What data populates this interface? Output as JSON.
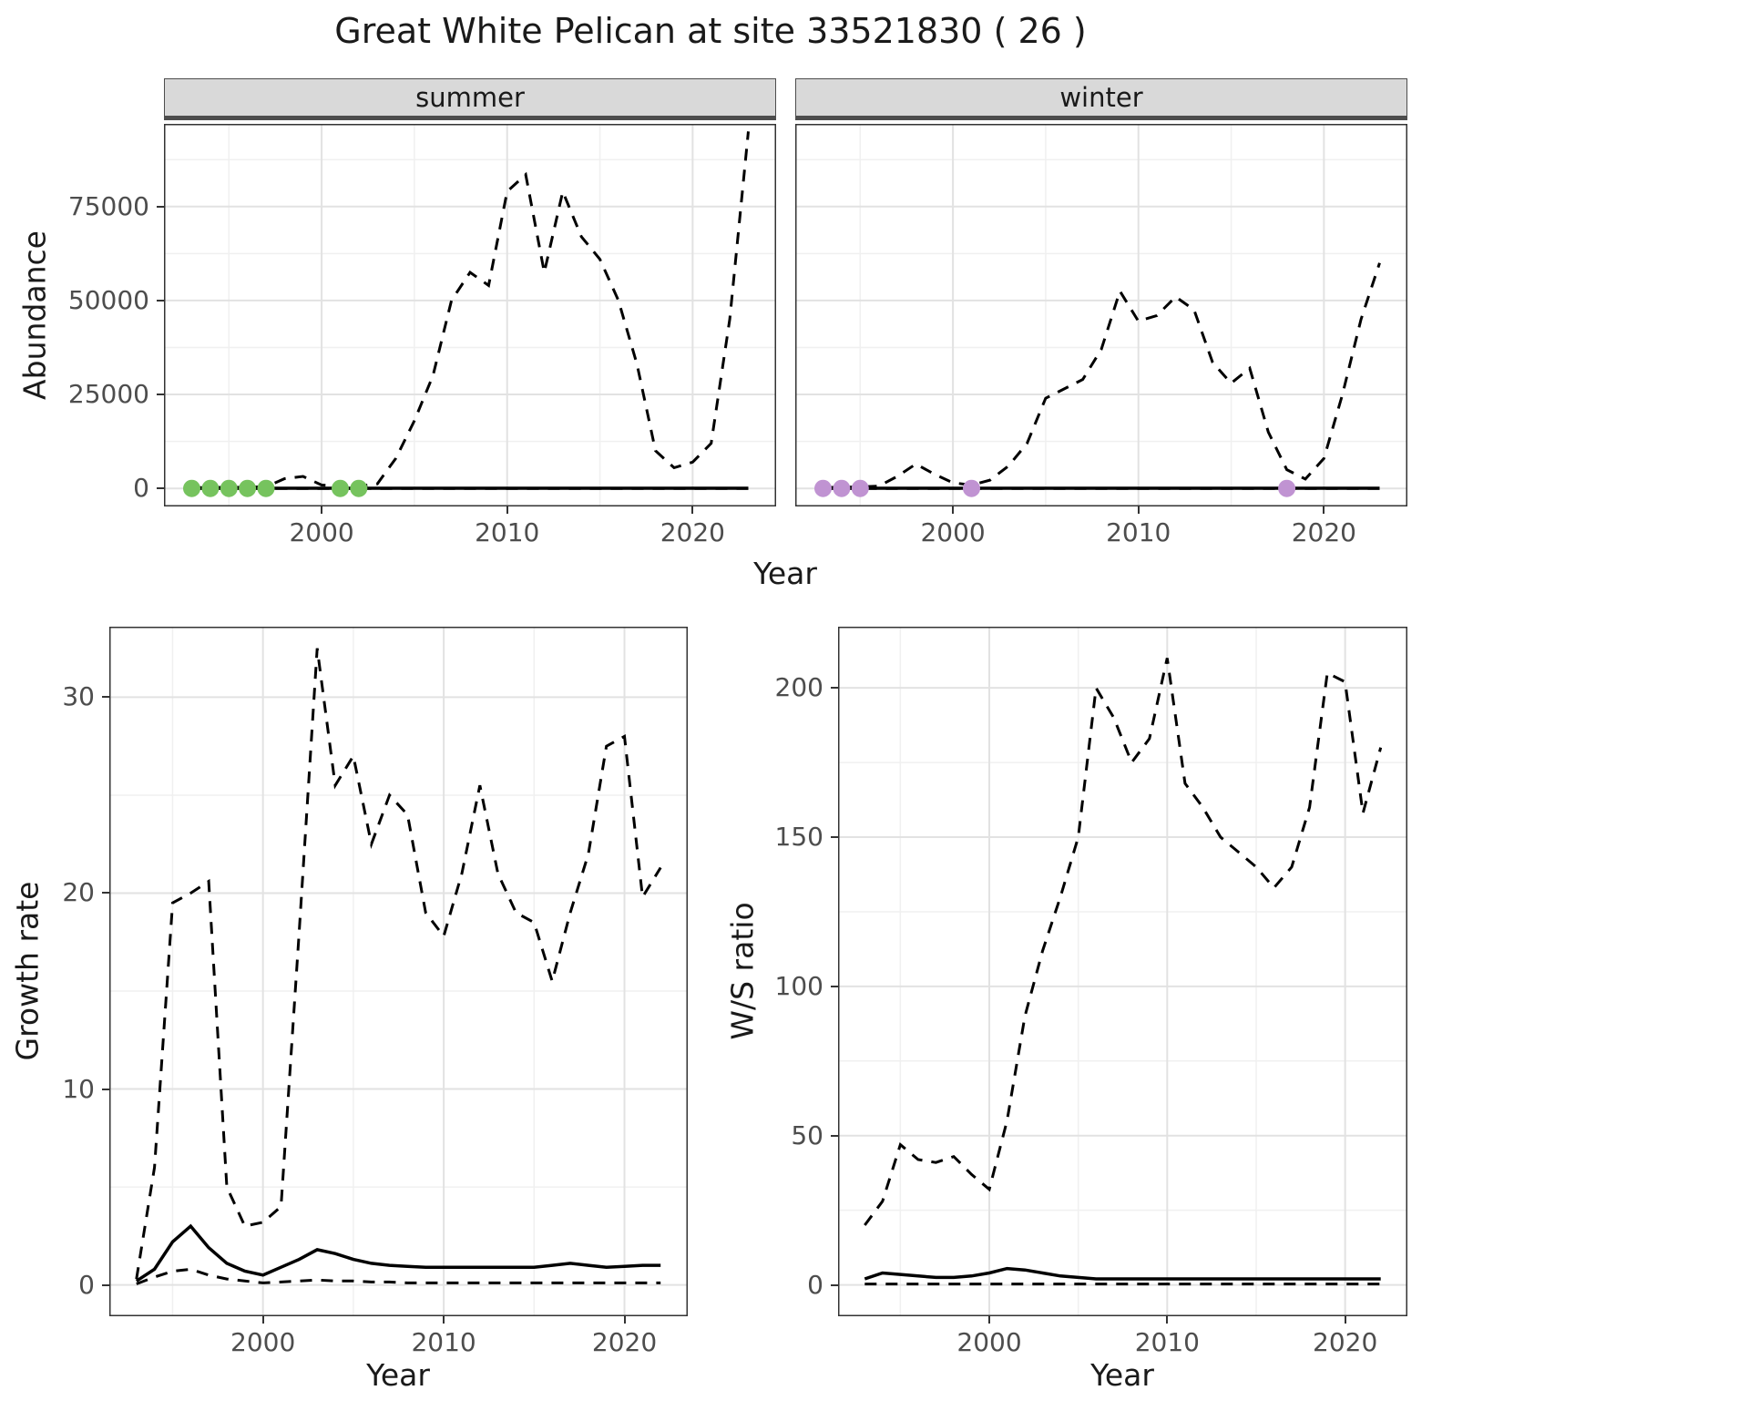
{
  "title": "Great White Pelican at site 33521830 ( 26 )",
  "top_plot": {
    "facets": [
      "summer",
      "winter"
    ],
    "xlabel": "Year",
    "ylabel": "Abundance"
  },
  "bottom_left": {
    "xlabel": "Year",
    "ylabel": "Growth rate"
  },
  "bottom_right": {
    "xlabel": "Year",
    "ylabel": "W/S ratio"
  },
  "colors": {
    "line": "#000000",
    "summer_points": "#76c35e",
    "winter_points": "#c093d2",
    "strip_background": "#d9d9d9",
    "panel_border": "#333333",
    "grid_major": "#e2e2e2",
    "grid_minor": "#f0f0f0",
    "tick_text": "#4d4d4d",
    "text": "#1a1a1a"
  },
  "chart_data": [
    {
      "id": "abundance-summer",
      "type": "line",
      "facet": "summer",
      "xlabel": "Year",
      "ylabel": "Abundance",
      "xlim": [
        1991.5,
        2024.5
      ],
      "ylim": [
        -4800,
        97000
      ],
      "xticks": [
        2000,
        2010,
        2020
      ],
      "xticks_minor": [
        1995,
        2005,
        2015
      ],
      "yticks": [
        0,
        25000,
        50000,
        75000
      ],
      "yticks_minor": [
        12500,
        37500,
        62500,
        87500
      ],
      "x": [
        1993,
        1994,
        1995,
        1996,
        1997,
        1998,
        1999,
        2000,
        2001,
        2002,
        2003,
        2004,
        2005,
        2006,
        2007,
        2008,
        2009,
        2010,
        2011,
        2012,
        2013,
        2014,
        2015,
        2016,
        2017,
        2018,
        2019,
        2020,
        2021,
        2022,
        2023
      ],
      "series": [
        {
          "name": "estimate",
          "style": "solid",
          "values": [
            50,
            50,
            50,
            50,
            50,
            50,
            50,
            50,
            50,
            50,
            50,
            50,
            50,
            50,
            50,
            50,
            50,
            50,
            50,
            50,
            50,
            50,
            50,
            50,
            50,
            50,
            50,
            50,
            50,
            50,
            50
          ]
        },
        {
          "name": "upper-ci",
          "style": "dashed",
          "values": [
            250,
            250,
            300,
            350,
            400,
            2600,
            3200,
            900,
            600,
            600,
            1200,
            8000,
            18000,
            30000,
            50000,
            57500,
            54000,
            79000,
            83500,
            57500,
            79000,
            67000,
            61000,
            50000,
            33000,
            10000,
            5500,
            7000,
            12000,
            45000,
            95000
          ]
        },
        {
          "name": "lower-ci",
          "style": "dashed",
          "values": [
            0,
            0,
            0,
            0,
            0,
            0,
            0,
            0,
            0,
            0,
            0,
            0,
            0,
            0,
            0,
            0,
            0,
            0,
            0,
            0,
            0,
            0,
            0,
            0,
            0,
            0,
            0,
            0,
            0,
            0,
            0
          ]
        }
      ],
      "points": [
        {
          "name": "zero-count-year-point",
          "color": "#76c35e",
          "x": [
            1993,
            1994,
            1995,
            1996,
            1997,
            2001,
            2002
          ],
          "y": [
            0,
            0,
            0,
            0,
            0,
            0,
            0
          ]
        }
      ]
    },
    {
      "id": "abundance-winter",
      "type": "line",
      "facet": "winter",
      "xlabel": "Year",
      "ylabel": "Abundance",
      "xlim": [
        1991.5,
        2024.5
      ],
      "ylim": [
        -4800,
        97000
      ],
      "xticks": [
        2000,
        2010,
        2020
      ],
      "xticks_minor": [
        1995,
        2005,
        2015
      ],
      "yticks": [
        0,
        25000,
        50000,
        75000
      ],
      "yticks_minor": [
        12500,
        37500,
        62500,
        87500
      ],
      "x": [
        1993,
        1994,
        1995,
        1996,
        1997,
        1998,
        1999,
        2000,
        2001,
        2002,
        2003,
        2004,
        2005,
        2006,
        2007,
        2008,
        2009,
        2010,
        2011,
        2012,
        2013,
        2014,
        2015,
        2016,
        2017,
        2018,
        2019,
        2020,
        2021,
        2022,
        2023
      ],
      "series": [
        {
          "name": "estimate",
          "style": "solid",
          "values": [
            50,
            50,
            50,
            50,
            50,
            50,
            50,
            50,
            50,
            50,
            50,
            50,
            50,
            50,
            50,
            50,
            50,
            50,
            50,
            50,
            50,
            50,
            50,
            50,
            50,
            50,
            50,
            50,
            50,
            50,
            50
          ]
        },
        {
          "name": "upper-ci",
          "style": "dashed",
          "values": [
            300,
            300,
            400,
            600,
            3200,
            6500,
            3800,
            1500,
            900,
            2200,
            6000,
            12000,
            24000,
            26500,
            29000,
            37000,
            52500,
            44500,
            46000,
            51000,
            47500,
            33500,
            28000,
            32000,
            15000,
            5000,
            2500,
            8000,
            25000,
            45000,
            60000
          ]
        },
        {
          "name": "lower-ci",
          "style": "dashed",
          "values": [
            0,
            0,
            0,
            0,
            0,
            0,
            0,
            0,
            0,
            0,
            0,
            0,
            0,
            0,
            0,
            0,
            0,
            0,
            0,
            0,
            0,
            0,
            0,
            0,
            0,
            0,
            0,
            0,
            0,
            0,
            0
          ]
        }
      ],
      "points": [
        {
          "name": "zero-count-year-point",
          "color": "#c093d2",
          "x": [
            1993,
            1994,
            1995,
            2001,
            2018
          ],
          "y": [
            0,
            0,
            0,
            0,
            0
          ]
        }
      ]
    },
    {
      "id": "growth-rate",
      "type": "line",
      "xlabel": "Year",
      "ylabel": "Growth rate",
      "xlim": [
        1991.5,
        2023.5
      ],
      "ylim": [
        -1.6,
        33.6
      ],
      "xticks": [
        2000,
        2010,
        2020
      ],
      "xticks_minor": [
        1995,
        2005,
        2015
      ],
      "yticks": [
        0,
        10,
        20,
        30
      ],
      "yticks_minor": [
        5,
        15,
        25
      ],
      "x": [
        1993,
        1994,
        1995,
        1996,
        1997,
        1998,
        1999,
        2000,
        2001,
        2002,
        2003,
        2004,
        2005,
        2006,
        2007,
        2008,
        2009,
        2010,
        2011,
        2012,
        2013,
        2014,
        2015,
        2016,
        2017,
        2018,
        2019,
        2020,
        2021,
        2022
      ],
      "series": [
        {
          "name": "estimate",
          "style": "solid",
          "values": [
            0.2,
            0.8,
            2.2,
            3.0,
            1.9,
            1.1,
            0.7,
            0.5,
            0.9,
            1.3,
            1.8,
            1.6,
            1.3,
            1.1,
            1.0,
            0.95,
            0.9,
            0.9,
            0.9,
            0.9,
            0.9,
            0.9,
            0.9,
            1.0,
            1.1,
            1.0,
            0.9,
            0.95,
            1.0,
            1.0
          ]
        },
        {
          "name": "upper-ci",
          "style": "dashed",
          "values": [
            0.3,
            6,
            19.5,
            20.0,
            20.6,
            5,
            3,
            3.2,
            4,
            18,
            32.5,
            25.5,
            27,
            22.5,
            25,
            24,
            19,
            17.8,
            21,
            25.5,
            21,
            19,
            18.5,
            15.5,
            19,
            22,
            27.5,
            28,
            19.8,
            21.3
          ]
        },
        {
          "name": "lower-ci",
          "style": "dashed",
          "values": [
            0.05,
            0.4,
            0.7,
            0.8,
            0.5,
            0.3,
            0.2,
            0.1,
            0.15,
            0.2,
            0.25,
            0.2,
            0.2,
            0.15,
            0.15,
            0.1,
            0.1,
            0.1,
            0.1,
            0.1,
            0.1,
            0.1,
            0.1,
            0.1,
            0.1,
            0.1,
            0.1,
            0.1,
            0.1,
            0.1
          ]
        }
      ],
      "points": []
    },
    {
      "id": "ws-ratio",
      "type": "line",
      "xlabel": "Year",
      "ylabel": "W/S ratio",
      "xlim": [
        1991.5,
        2023.5
      ],
      "ylim": [
        -10.5,
        220.5
      ],
      "xticks": [
        2000,
        2010,
        2020
      ],
      "xticks_minor": [
        1995,
        2005,
        2015
      ],
      "yticks": [
        0,
        50,
        100,
        150,
        200
      ],
      "yticks_minor": [
        25,
        75,
        125,
        175
      ],
      "x": [
        1993,
        1994,
        1995,
        1996,
        1997,
        1998,
        1999,
        2000,
        2001,
        2002,
        2003,
        2004,
        2005,
        2006,
        2007,
        2008,
        2009,
        2010,
        2011,
        2012,
        2013,
        2014,
        2015,
        2016,
        2017,
        2018,
        2019,
        2020,
        2021,
        2022
      ],
      "series": [
        {
          "name": "estimate",
          "style": "solid",
          "values": [
            2,
            4,
            3.5,
            3,
            2.5,
            2.5,
            3,
            4,
            5.5,
            5,
            4,
            3,
            2.5,
            2,
            2,
            2,
            2,
            2,
            2,
            2,
            2,
            2,
            2,
            2,
            2,
            2,
            2,
            2,
            2,
            2
          ]
        },
        {
          "name": "upper-ci",
          "style": "dashed",
          "values": [
            20,
            28,
            47,
            42,
            41,
            43,
            37,
            32,
            55,
            90,
            112,
            130,
            150,
            200,
            190,
            175,
            183,
            210,
            168,
            160,
            150,
            145,
            140,
            133,
            140,
            160,
            205,
            202,
            158,
            180
          ]
        },
        {
          "name": "lower-ci",
          "style": "dashed",
          "values": [
            0.3,
            0.3,
            0.3,
            0.3,
            0.3,
            0.3,
            0.3,
            0.3,
            0.3,
            0.3,
            0.3,
            0.3,
            0.3,
            0.3,
            0.3,
            0.3,
            0.3,
            0.3,
            0.3,
            0.3,
            0.3,
            0.3,
            0.3,
            0.3,
            0.3,
            0.3,
            0.3,
            0.3,
            0.3,
            0.3
          ]
        }
      ],
      "points": []
    }
  ]
}
